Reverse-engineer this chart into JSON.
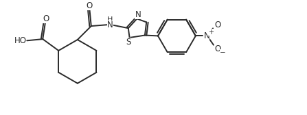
{
  "bg_color": "#ffffff",
  "line_color": "#2a2a2a",
  "line_width": 1.4,
  "font_size": 8.5,
  "figsize": [
    4.47,
    1.68
  ],
  "dpi": 100,
  "xlim": [
    0,
    10
  ],
  "ylim": [
    0,
    3.75
  ]
}
